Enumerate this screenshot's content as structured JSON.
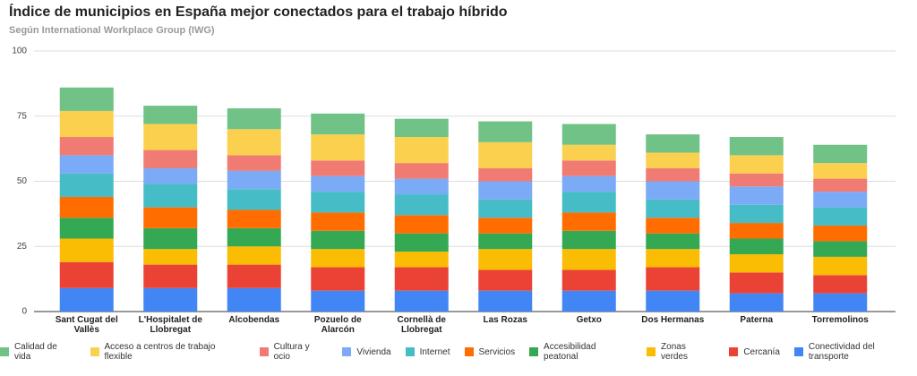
{
  "chart_data": {
    "type": "stacked_bar",
    "title": "Índice de municipios en España mejor conectados para el trabajo híbrido",
    "subtitle": "Según International Workplace Group (IWG)",
    "categories": [
      "Sant Cugat del Vallès",
      "L'Hospitalet de Llobregat",
      "Alcobendas",
      "Pozuelo de Alarcón",
      "Cornellà de Llobregat",
      "Las Rozas",
      "Getxo",
      "Dos Hermanas",
      "Paterna",
      "Torremolinos"
    ],
    "series": [
      {
        "name": "Calidad de vida",
        "color": "#71c287",
        "values": [
          9,
          7,
          8,
          8,
          7,
          8,
          8,
          7,
          7,
          7
        ]
      },
      {
        "name": "Acceso a centros de trabajo flexible",
        "color": "#fcd04f",
        "values": [
          10,
          10,
          10,
          10,
          10,
          10,
          6,
          6,
          7,
          6
        ]
      },
      {
        "name": "Cultura y ocio",
        "color": "#f07b72",
        "values": [
          7,
          7,
          6,
          6,
          6,
          5,
          6,
          5,
          5,
          5
        ]
      },
      {
        "name": "Vivienda",
        "color": "#7baaf7",
        "values": [
          7,
          6,
          7,
          6,
          6,
          7,
          6,
          7,
          7,
          6
        ]
      },
      {
        "name": "Internet",
        "color": "#46bdc6",
        "values": [
          9,
          9,
          8,
          8,
          8,
          7,
          8,
          7,
          7,
          7
        ]
      },
      {
        "name": "Servicios",
        "color": "#ff6d01",
        "values": [
          8,
          8,
          7,
          7,
          7,
          6,
          7,
          6,
          6,
          6
        ]
      },
      {
        "name": "Accesibilidad peatonal",
        "color": "#34a853",
        "values": [
          8,
          8,
          7,
          7,
          7,
          6,
          7,
          6,
          6,
          6
        ]
      },
      {
        "name": "Zonas verdes",
        "color": "#fbbc04",
        "values": [
          9,
          6,
          7,
          7,
          6,
          8,
          8,
          7,
          7,
          7
        ]
      },
      {
        "name": "Cercanía",
        "color": "#ea4335",
        "values": [
          10,
          9,
          9,
          9,
          9,
          8,
          8,
          9,
          8,
          7
        ]
      },
      {
        "name": "Conectividad del transporte",
        "color": "#4285f4",
        "values": [
          9,
          9,
          9,
          8,
          8,
          8,
          8,
          8,
          7,
          7
        ]
      }
    ],
    "ylim": [
      0,
      100
    ],
    "yticks": [
      0,
      25,
      50,
      75,
      100
    ],
    "grid": true
  }
}
